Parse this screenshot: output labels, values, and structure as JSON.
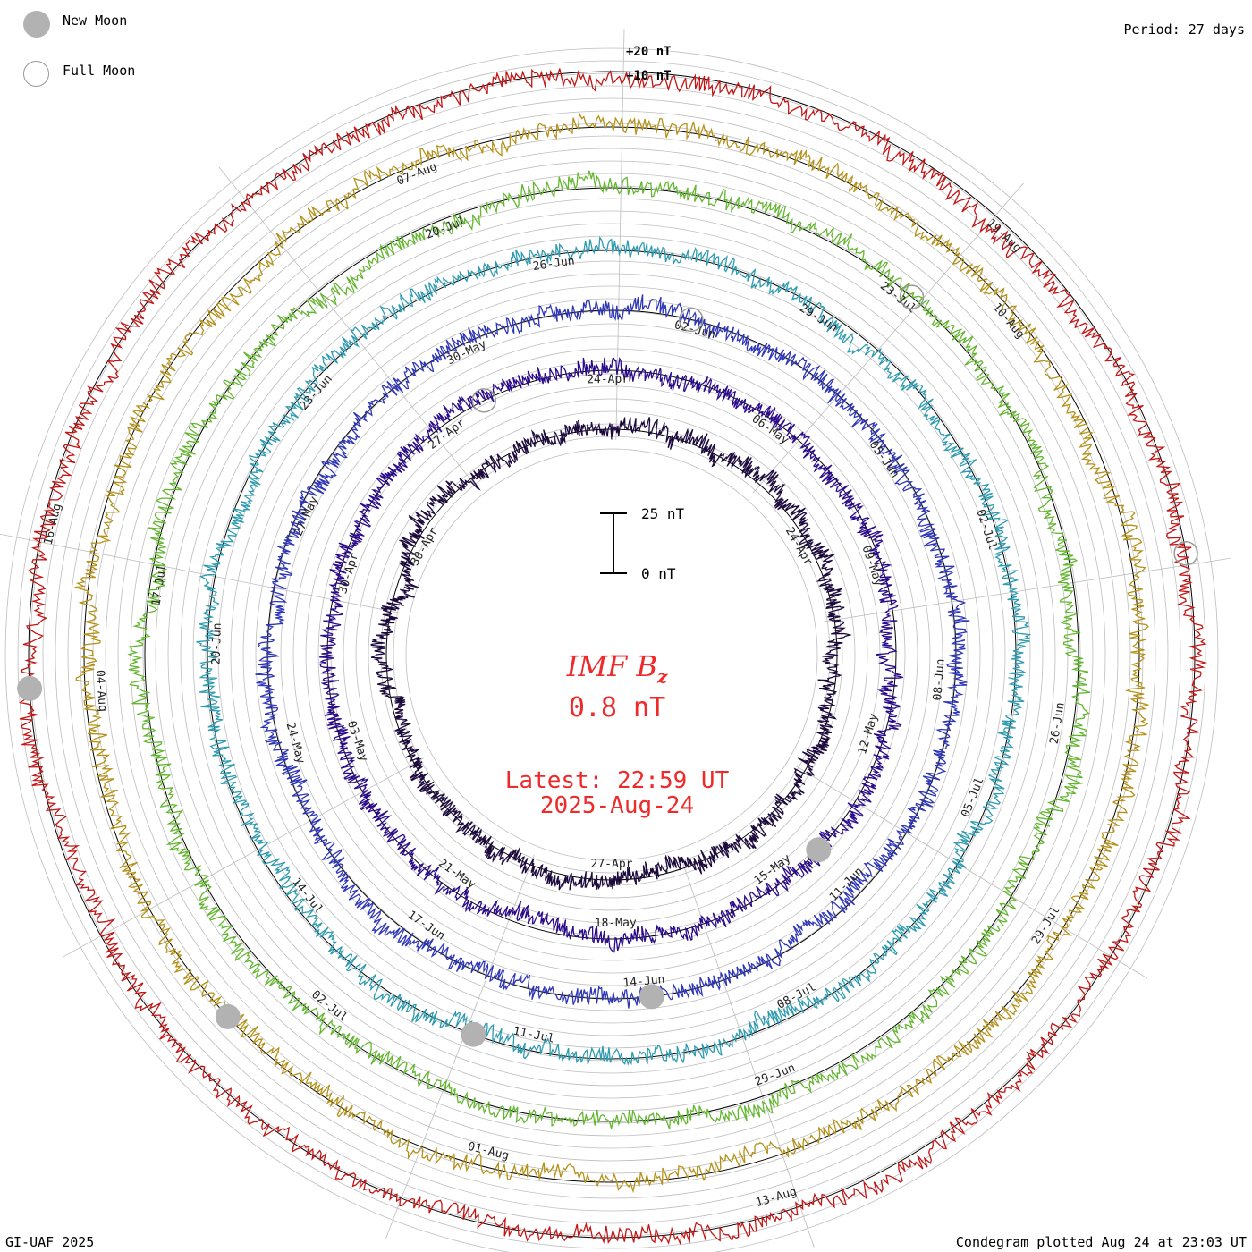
{
  "legend": {
    "new_moon_label": "New Moon",
    "full_moon_label": "Full Moon"
  },
  "header": {
    "period": "Period: 27 days"
  },
  "footer": {
    "credit": "GI-UAF 2025",
    "plotted": "Condegram plotted Aug 24 at 23:03 UT"
  },
  "center": {
    "parameter": "IMF B",
    "parameter_sub": "z",
    "value": "0.8 nT",
    "latest_time": "Latest: 22:59 UT",
    "latest_date": "2025-Aug-24"
  },
  "colors": {
    "moon_fill": "#b2b2b2",
    "center_text": "#ee2a2a",
    "grid": "#bdbdbd",
    "loops": [
      "#1c0a3d",
      "#2a0a8a",
      "#2e36b8",
      "#2d9bb0",
      "#63b62f",
      "#b59118",
      "#c41515"
    ]
  },
  "chart_data": {
    "type": "condegram",
    "period_days": 27,
    "scale": {
      "bar_top_label": "25 nT",
      "bar_bottom_label": "0 nT",
      "bar_value_nT": 25
    },
    "outer_scale_labels": [
      "+20 nT",
      "+10 nT"
    ],
    "loops": [
      {
        "start": "2025-04-17",
        "end": "2025-05-14",
        "color": "#1c0a3d",
        "amplitude_nT": 10,
        "date_labels": [
          "24-Apr",
          "27-Apr",
          "30-Apr"
        ]
      },
      {
        "start": "2025-04-24",
        "end": "2025-05-21",
        "color": "#2a0a8a",
        "amplitude_nT": 10,
        "date_labels": [
          "06-May",
          "09-May",
          "12-May",
          "15-May",
          "18-May",
          "21-May",
          "03-May",
          "30-Apr",
          "27-Apr",
          "24-Apr"
        ]
      },
      {
        "start": "2025-05-21",
        "end": "2025-06-17",
        "color": "#2e36b8",
        "amplitude_nT": 10,
        "date_labels": [
          "05-Jun",
          "08-Jun",
          "11-Jun",
          "14-Jun",
          "17-Jun",
          "24-May",
          "27-May",
          "30-May",
          "02-Jun"
        ]
      },
      {
        "start": "2025-06-17",
        "end": "2025-07-14",
        "color": "#2d9bb0",
        "amplitude_nT": 10,
        "date_labels": [
          "02-Jul",
          "05-Jul",
          "08-Jul",
          "11-Jul",
          "14-Jul",
          "20-Jun",
          "23-Jun",
          "26-Jun",
          "29-Jun"
        ]
      },
      {
        "start": "2025-06-26",
        "end": "2025-07-23",
        "color": "#63b62f",
        "amplitude_nT": 10,
        "date_labels": [
          "26-Jun",
          "29-Jun",
          "02-Jul",
          "17-Jul",
          "20-Jul",
          "23-Jul"
        ]
      },
      {
        "start": "2025-07-14",
        "end": "2025-08-10",
        "color": "#b59118",
        "amplitude_nT": 10,
        "date_labels": [
          "29-Jul",
          "01-Aug",
          "04-Aug",
          "07-Aug",
          "10-Aug"
        ]
      },
      {
        "start": "2025-07-28",
        "end": "2025-08-24",
        "color": "#c41515",
        "amplitude_nT": 10,
        "date_labels": [
          "13-Aug",
          "16-Aug",
          "19-Aug"
        ]
      }
    ],
    "new_moons": [
      "2025-04-27",
      "2025-05-27",
      "2025-06-25",
      "2025-07-24",
      "2025-08-23"
    ],
    "full_moons": [
      "2025-05-12",
      "2025-06-11",
      "2025-07-10",
      "2025-08-09"
    ],
    "latest_value_nT": 0.8
  }
}
